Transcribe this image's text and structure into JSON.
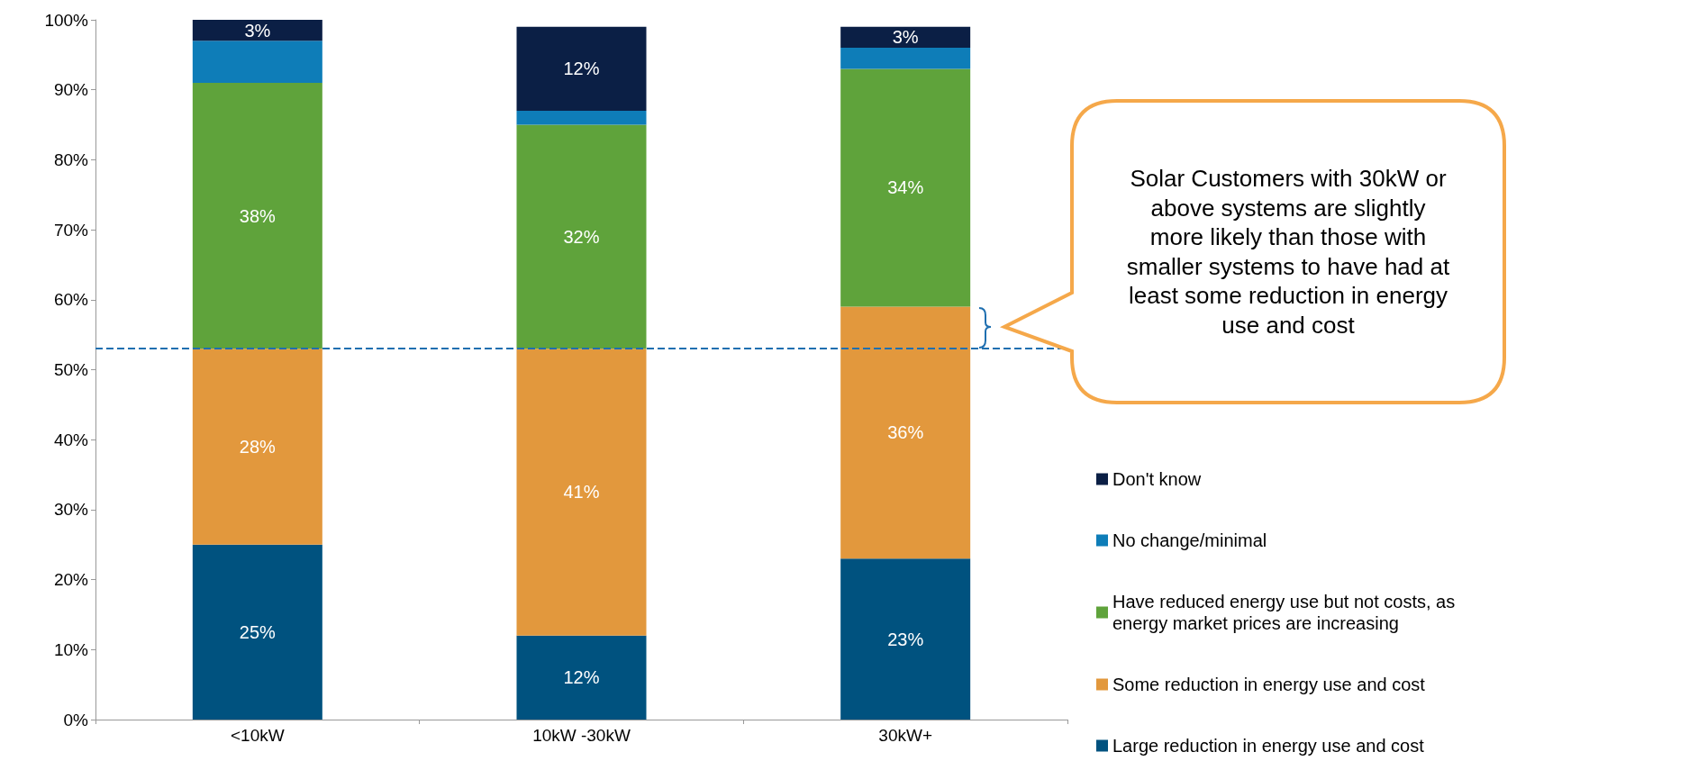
{
  "chart_data": {
    "type": "bar",
    "stacked": true,
    "categories": [
      "<10kW",
      "10kW -30kW",
      "30kW+"
    ],
    "series": [
      {
        "name": "Large reduction in energy use and cost",
        "color": "#00527f",
        "values": [
          25,
          12,
          23
        ],
        "value_labels": [
          "25%",
          "12%",
          "23%"
        ]
      },
      {
        "name": "Some reduction in energy use and cost",
        "color": "#e2983d",
        "values": [
          28,
          41,
          36
        ],
        "value_labels": [
          "28%",
          "41%",
          "36%"
        ]
      },
      {
        "name": "Have reduced energy use but not costs, as energy market prices are increasing",
        "color": "#5fa33b",
        "values": [
          38,
          32,
          34
        ],
        "value_labels": [
          "38%",
          "32%",
          "34%"
        ]
      },
      {
        "name": "No change/minimal",
        "color": "#0e7db8",
        "values": [
          6,
          2,
          3
        ],
        "value_labels": [
          null,
          null,
          null
        ]
      },
      {
        "name": "Don't know",
        "color": "#0b1f45",
        "values": [
          3,
          12,
          3
        ],
        "value_labels": [
          "3%",
          "12%",
          "3%"
        ]
      }
    ],
    "ylim": [
      0,
      100
    ],
    "yticks": [
      {
        "value": 0,
        "label": "0%"
      },
      {
        "value": 10,
        "label": "10%"
      },
      {
        "value": 20,
        "label": "20%"
      },
      {
        "value": 30,
        "label": "30%"
      },
      {
        "value": 40,
        "label": "40%"
      },
      {
        "value": 50,
        "label": "50%"
      },
      {
        "value": 60,
        "label": "60%"
      },
      {
        "value": 70,
        "label": "70%"
      },
      {
        "value": 80,
        "label": "80%"
      },
      {
        "value": 90,
        "label": "90%"
      },
      {
        "value": 100,
        "label": "100%"
      }
    ],
    "ref_lines": [
      {
        "axis": "y",
        "value": 53,
        "color": "#1f6fb0",
        "line_style": "dashed"
      }
    ],
    "annotations": [
      "Solar Customers with 30kW or above systems are slightly more likely than those with smaller systems to have had at least some reduction in energy use and cost"
    ],
    "legend": "right",
    "grid": false
  }
}
